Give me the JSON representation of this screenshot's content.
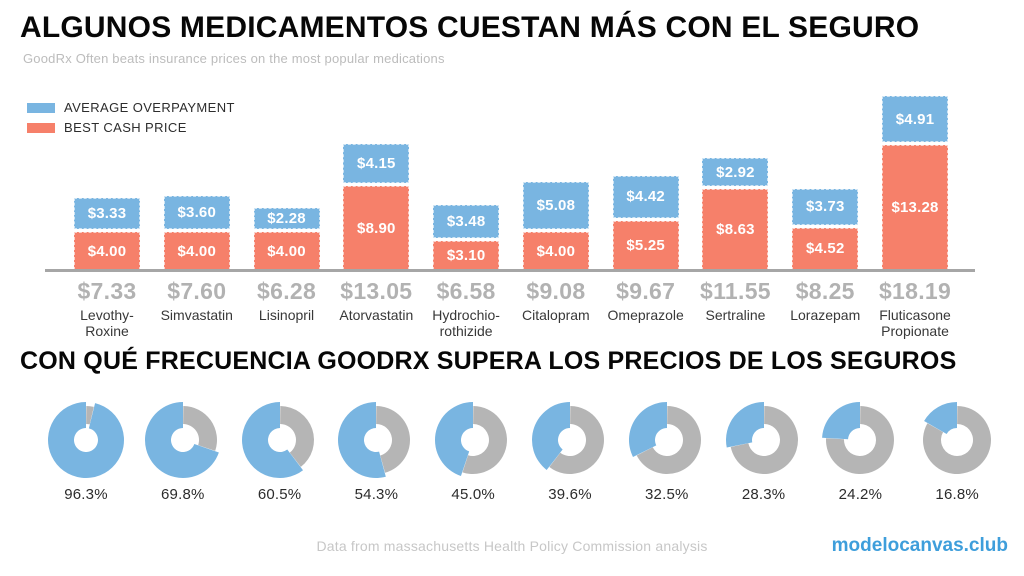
{
  "page": {
    "footer_note": "Data from massachusetts Health Policy Commission analysis",
    "brand": "modelocanvas.club"
  },
  "colors": {
    "overpayment_blue": "#79B5E1",
    "cash_orange": "#F6806A",
    "donut_remainder_gray": "#B5B5B5",
    "brand_blue": "#3E9EDB",
    "axis_gray": "#A6A6A6",
    "muted_total_gray": "#B2B2B2"
  },
  "section_top": {
    "title": "ALGUNOS MEDICAMENTOS CUESTAN MÁS CON EL SEGURO",
    "subtitle": "GoodRx Often beats insurance prices on the most popular medications",
    "legend": [
      {
        "label": "AVERAGE OVERPAYMENT",
        "color": "#79B5E1"
      },
      {
        "label": "BEST CASH PRICE",
        "color": "#F6806A"
      }
    ]
  },
  "section_bottom": {
    "title": "CON QUÉ FRECUENCIA GOODRX SUPERA LOS PRECIOS DE LOS SEGUROS"
  },
  "chart_data": [
    {
      "type": "bar",
      "stacked": true,
      "title": "ALGUNOS MEDICAMENTOS CUESTAN MÁS CON EL SEGURO",
      "subtitle": "GoodRx Often beats insurance prices on the most popular medications",
      "categories": [
        "Levothy-\nRoxine",
        "Simvastatin",
        "Lisinopril",
        "Atorvastatin",
        "Hydrochio-\nrothizide",
        "Citalopram",
        "Omeprazole",
        "Sertraline",
        "Lorazepam",
        "Fluticasone\nPropionate"
      ],
      "series": [
        {
          "name": "AVERAGE OVERPAYMENT",
          "color": "#79B5E1",
          "values": [
            3.33,
            3.6,
            2.28,
            4.15,
            3.48,
            5.08,
            4.42,
            2.92,
            3.73,
            4.91
          ]
        },
        {
          "name": "BEST CASH PRICE",
          "color": "#F6806A",
          "values": [
            4.0,
            4.0,
            4.0,
            8.9,
            3.1,
            4.0,
            5.25,
            8.63,
            4.52,
            13.28
          ]
        }
      ],
      "totals": [
        7.33,
        7.6,
        6.28,
        13.05,
        6.58,
        9.08,
        9.67,
        11.55,
        8.25,
        18.19
      ],
      "value_prefix": "$",
      "value_decimals": 2,
      "legend_position": "top-left",
      "grid": false,
      "xlabel": "",
      "ylabel": ""
    },
    {
      "type": "pie",
      "variant": "donut-row",
      "title": "CON QUÉ FRECUENCIA GOODRX SUPERA LOS PRECIOS DE LOS SEGUROS",
      "values": [
        96.3,
        69.8,
        60.5,
        54.3,
        45.0,
        39.6,
        32.5,
        28.3,
        24.2,
        16.8
      ],
      "labels": [
        "96.3%",
        "69.8%",
        "60.5%",
        "54.3%",
        "45.0%",
        "39.6%",
        "32.5%",
        "28.3%",
        "24.2%",
        "16.8%"
      ],
      "filled_color": "#79B5E1",
      "remainder_color": "#B5B5B5"
    }
  ]
}
